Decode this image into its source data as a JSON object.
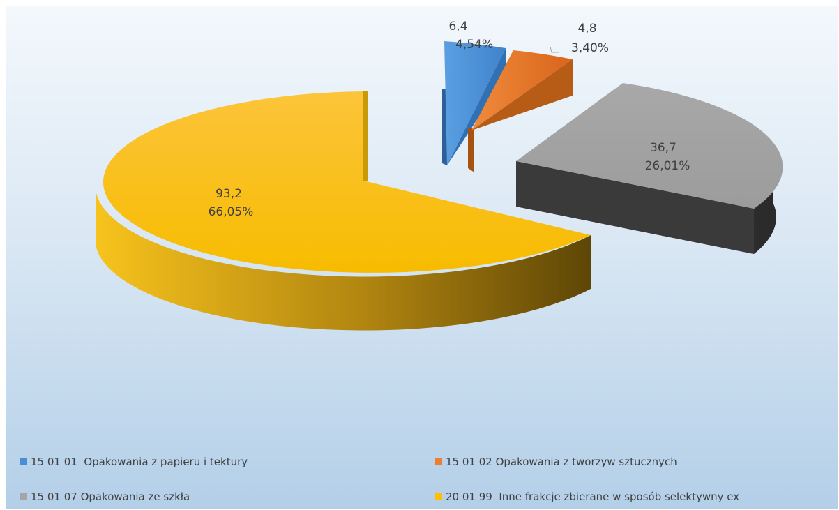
{
  "chart_data": {
    "type": "pie",
    "style": "3d-exploded",
    "legend_position": "bottom",
    "series": [
      {
        "name": "15 01 01  Opakowania z papieru i tektury",
        "value": 6.4,
        "value_label": "6,4",
        "percent_label": "4,54%",
        "color": "#4a8ed8"
      },
      {
        "name": "15 01 02 Opakowania z tworzyw sztucznych",
        "value": 4.8,
        "value_label": "4,8",
        "percent_label": "3,40%",
        "color": "#ed7d31"
      },
      {
        "name": "15 01 07 Opakowania ze szkła",
        "value": 36.7,
        "value_label": "36,7",
        "percent_label": "26,01%",
        "color": "#a5a5a5"
      },
      {
        "name": "20 01 99  Inne frakcje zbierane w sposób selektywny ex",
        "value": 93.2,
        "value_label": "93,2",
        "percent_label": "66,05%",
        "color": "#ffc000"
      }
    ]
  }
}
